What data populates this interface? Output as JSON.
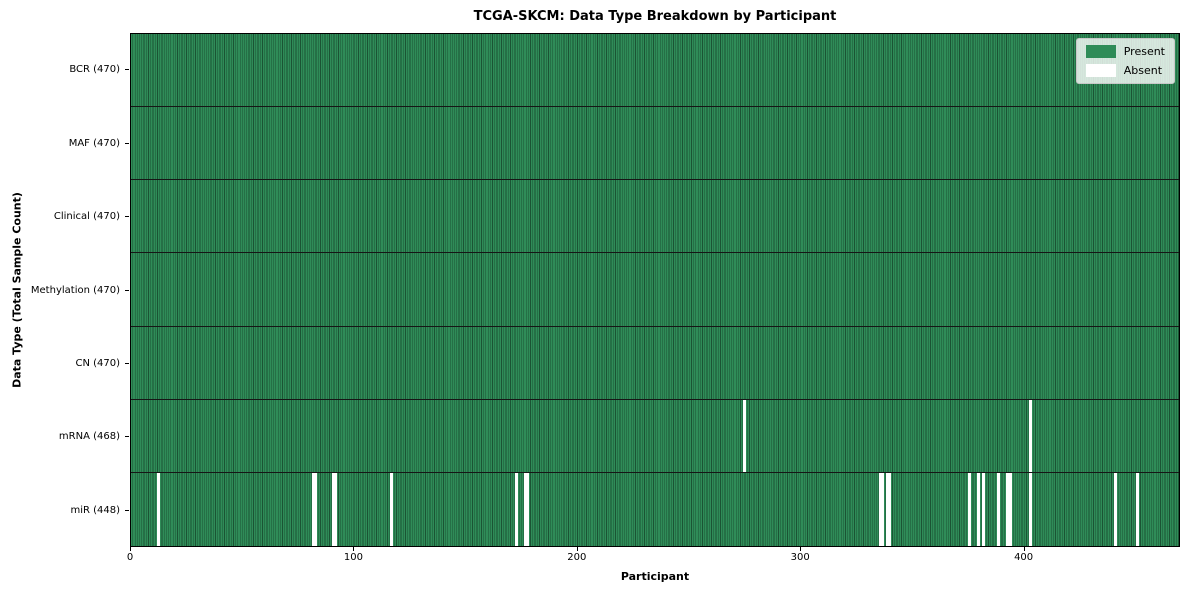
{
  "chart_data": {
    "type": "heatmap",
    "title": "TCGA-SKCM: Data Type Breakdown by Participant",
    "xlabel": "Participant",
    "ylabel": "Data Type (Total Sample Count)",
    "x_range": [
      0,
      470
    ],
    "n_participants": 470,
    "x_ticks": [
      0,
      100,
      200,
      300,
      400
    ],
    "grid": false,
    "legend_position": "upper right",
    "legend": [
      {
        "label": "Present",
        "color": "#2f8c58"
      },
      {
        "label": "Absent",
        "color": "#ffffff"
      }
    ],
    "colors": {
      "present": "#2f8c58",
      "cell_edge": "#1b5434",
      "absent": "#ffffff",
      "row_divider": "#161616",
      "frame": "#000000",
      "legend_bg": "rgba(255,255,255,0.8)"
    },
    "rows": [
      {
        "label": "BCR (470)",
        "present_count": 470,
        "absent_participants": []
      },
      {
        "label": "MAF (470)",
        "present_count": 470,
        "absent_participants": []
      },
      {
        "label": "Clinical (470)",
        "present_count": 470,
        "absent_participants": []
      },
      {
        "label": "Methylation (470)",
        "present_count": 470,
        "absent_participants": []
      },
      {
        "label": "CN (470)",
        "present_count": 470,
        "absent_participants": []
      },
      {
        "label": "mRNA (468)",
        "present_count": 468,
        "absent_participants": [
          274,
          402
        ]
      },
      {
        "label": "miR (448)",
        "present_count": 448,
        "absent_participants": [
          12,
          81,
          82,
          90,
          91,
          116,
          172,
          176,
          177,
          335,
          336,
          338,
          339,
          375,
          379,
          381,
          388,
          392,
          393,
          402,
          440,
          450
        ]
      }
    ]
  }
}
